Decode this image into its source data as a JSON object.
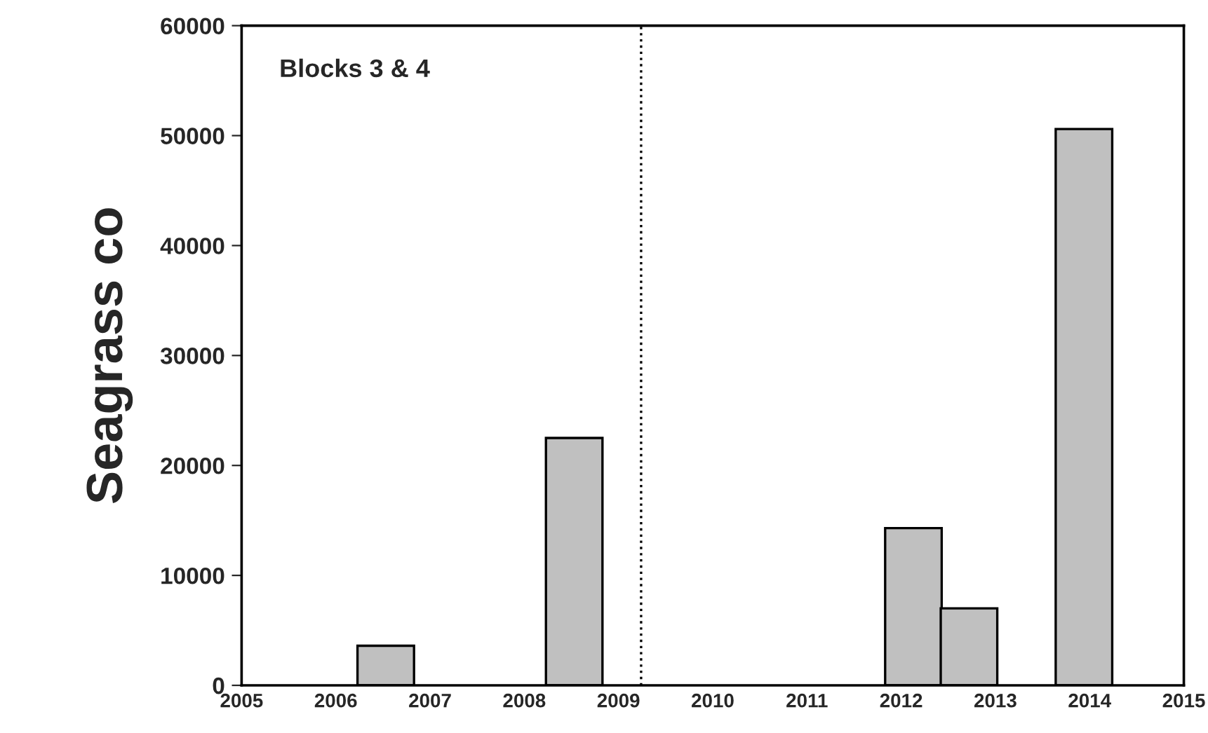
{
  "chart_data": {
    "type": "bar",
    "ylabel": "Seagrass co",
    "x": [
      2006.53,
      2008.53,
      2012.13,
      2012.72,
      2013.94
    ],
    "values": [
      3600,
      22500,
      14300,
      7000,
      50600
    ],
    "color": "#c0c0c0",
    "xlim": [
      2005,
      2015
    ],
    "xticks": [
      2005,
      2006,
      2007,
      2008,
      2009,
      2010,
      2011,
      2012,
      2013,
      2014,
      2015
    ],
    "ylim": [
      0,
      60000
    ],
    "yticks": [
      0,
      10000,
      20000,
      30000,
      40000,
      50000,
      60000
    ],
    "ref_lines": [
      {
        "axis": "x",
        "value": 2009.24,
        "line_style": "dotted"
      }
    ],
    "annotations": [
      "Blocks 3 & 4"
    ],
    "grid": false,
    "legend": false
  }
}
